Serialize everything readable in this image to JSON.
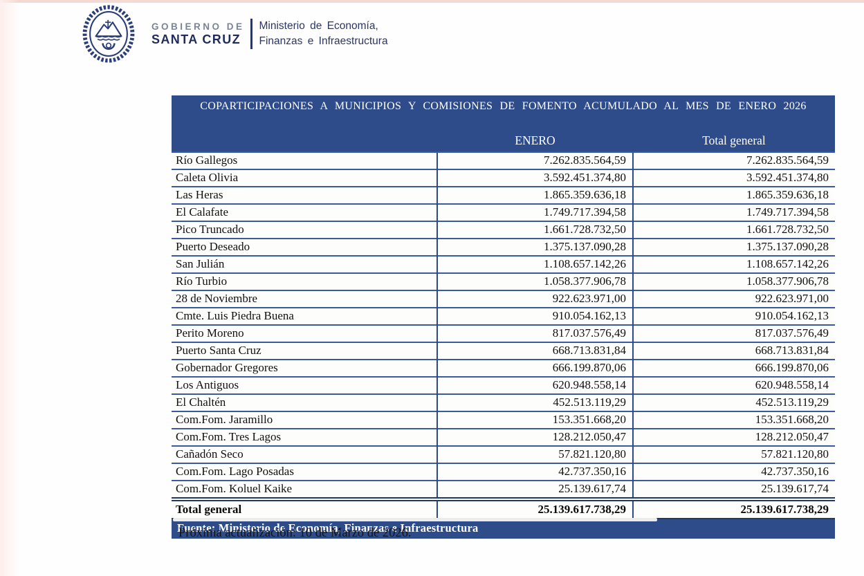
{
  "brand": {
    "gobierno": "GOBIERNO DE",
    "provincia": "SANTA CRUZ",
    "ministry_line1": "Ministerio de Economía,",
    "ministry_line2": "Finanzas e Infraestructura",
    "crest_icon": "santa-cruz-coat-of-arms"
  },
  "table": {
    "title": "COPARTICIPACIONES A MUNICIPIOS Y COMISIONES DE FOMENTO ACUMULADO AL MES DE ENERO 2026",
    "columns": [
      "",
      "ENERO",
      "Total general"
    ],
    "rows": [
      {
        "name": "Río Gallegos",
        "enero": "7.262.835.564,59",
        "total": "7.262.835.564,59"
      },
      {
        "name": "Caleta Olivia",
        "enero": "3.592.451.374,80",
        "total": "3.592.451.374,80"
      },
      {
        "name": "Las Heras",
        "enero": "1.865.359.636,18",
        "total": "1.865.359.636,18"
      },
      {
        "name": "El Calafate",
        "enero": "1.749.717.394,58",
        "total": "1.749.717.394,58"
      },
      {
        "name": "Pico Truncado",
        "enero": "1.661.728.732,50",
        "total": "1.661.728.732,50"
      },
      {
        "name": "Puerto Deseado",
        "enero": "1.375.137.090,28",
        "total": "1.375.137.090,28"
      },
      {
        "name": "San Julián",
        "enero": "1.108.657.142,26",
        "total": "1.108.657.142,26"
      },
      {
        "name": "Río Turbio",
        "enero": "1.058.377.906,78",
        "total": "1.058.377.906,78"
      },
      {
        "name": "28 de Noviembre",
        "enero": "922.623.971,00",
        "total": "922.623.971,00"
      },
      {
        "name": "Cmte. Luis Piedra Buena",
        "enero": "910.054.162,13",
        "total": "910.054.162,13"
      },
      {
        "name": "Perito Moreno",
        "enero": "817.037.576,49",
        "total": "817.037.576,49"
      },
      {
        "name": "Puerto Santa Cruz",
        "enero": "668.713.831,84",
        "total": "668.713.831,84"
      },
      {
        "name": "Gobernador Gregores",
        "enero": "666.199.870,06",
        "total": "666.199.870,06"
      },
      {
        "name": "Los Antiguos",
        "enero": "620.948.558,14",
        "total": "620.948.558,14"
      },
      {
        "name": "El Chaltén",
        "enero": "452.513.119,29",
        "total": "452.513.119,29"
      },
      {
        "name": "Com.Fom. Jaramillo",
        "enero": "153.351.668,20",
        "total": "153.351.668,20"
      },
      {
        "name": "Com.Fom. Tres Lagos",
        "enero": "128.212.050,47",
        "total": "128.212.050,47"
      },
      {
        "name": "Cañadón Seco",
        "enero": "57.821.120,80",
        "total": "57.821.120,80"
      },
      {
        "name": "Com.Fom. Lago Posadas",
        "enero": "42.737.350,16",
        "total": "42.737.350,16"
      },
      {
        "name": "Com.Fom. Koluel Kaike",
        "enero": "25.139.617,74",
        "total": "25.139.617,74"
      }
    ],
    "total_row": {
      "name": "Total general",
      "enero": "25.139.617.738,29",
      "total": "25.139.617.738,29"
    },
    "source": "Fuente: Ministerio de Economía, Finanzas e Infraestructura"
  },
  "note": "Próxima actualización: 10 de Marzo de 2026.",
  "colors": {
    "header_blue": "#2f4c8a",
    "border_navy": "#1f3864",
    "row_line_blue": "#3a5a9e",
    "crest_navy": "#2b3e78"
  }
}
